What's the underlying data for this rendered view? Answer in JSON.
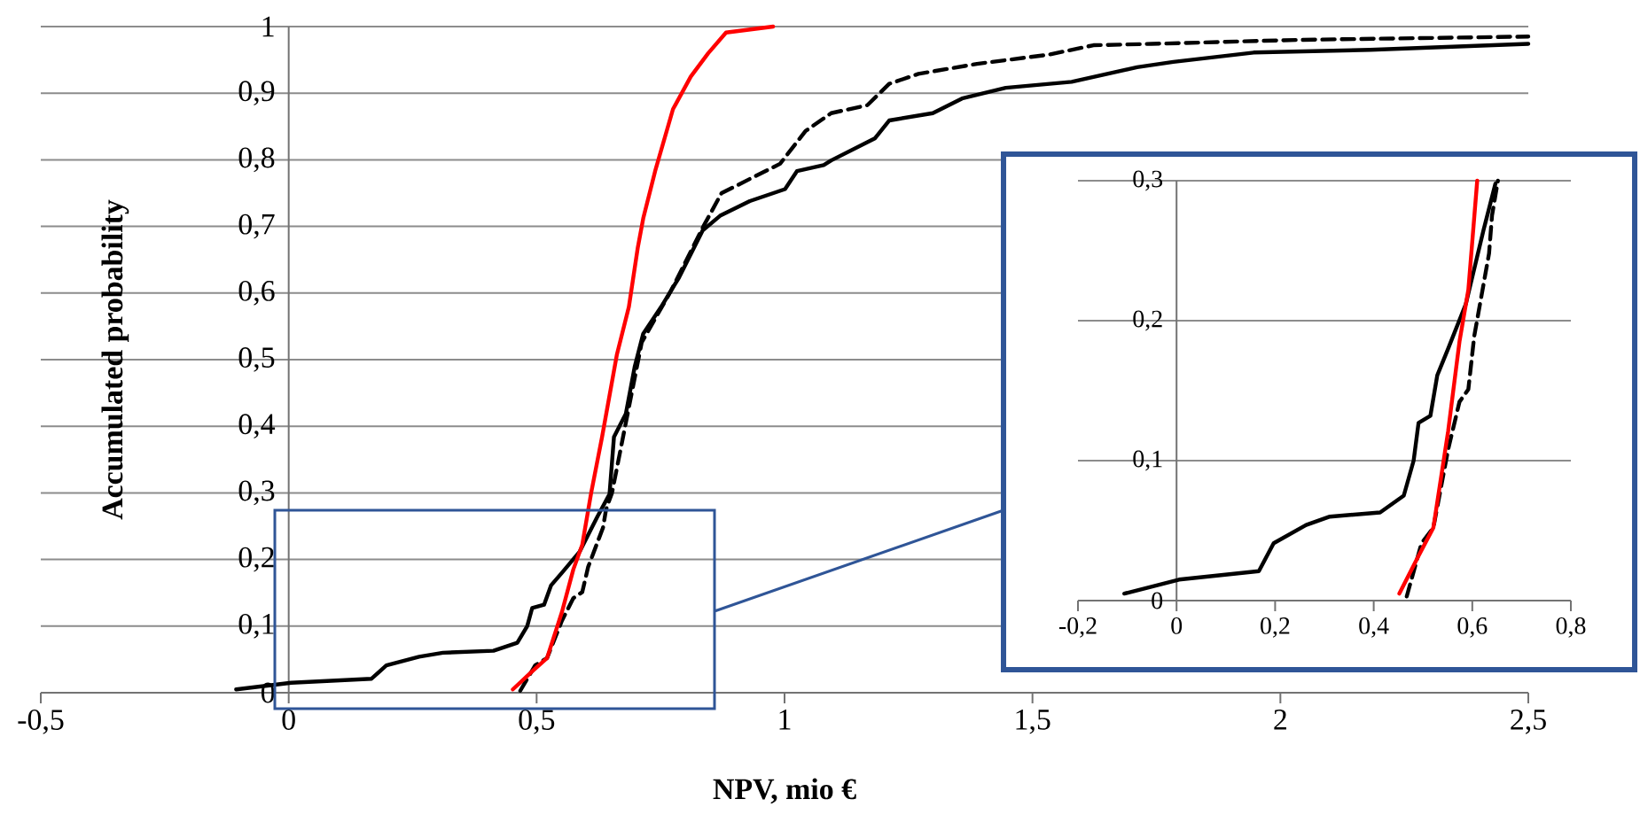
{
  "chart_data": [
    {
      "type": "line",
      "xlabel": "NPV, mio €",
      "ylabel": "Accumulated probability",
      "xlim": [
        -0.5,
        2.5
      ],
      "ylim": [
        0,
        1
      ],
      "xticks": [
        {
          "value": -0.5,
          "label": "-0,5"
        },
        0,
        {
          "value": 0.5,
          "label": "0,5"
        },
        1,
        {
          "value": 1.5,
          "label": "1,5"
        },
        2,
        {
          "value": 2.5,
          "label": "2,5"
        }
      ],
      "yticks": [
        0,
        {
          "value": 0.1,
          "label": "0,1"
        },
        {
          "value": 0.2,
          "label": "0,2"
        },
        {
          "value": 0.3,
          "label": "0,3"
        },
        {
          "value": 0.4,
          "label": "0,4"
        },
        {
          "value": 0.5,
          "label": "0,5"
        },
        {
          "value": 0.6,
          "label": "0,6"
        },
        {
          "value": 0.7,
          "label": "0,7"
        },
        {
          "value": 0.8,
          "label": "0,8"
        },
        {
          "value": 0.9,
          "label": "0,9"
        },
        1
      ],
      "grid": "y",
      "marker": "none",
      "series": [
        {
          "color": "#000000",
          "line_style": "solid",
          "x": [
            -0.106,
            0.005,
            0.167,
            0.197,
            0.263,
            0.311,
            0.413,
            0.461,
            0.481,
            0.491,
            0.515,
            0.529,
            0.551,
            0.587,
            0.623,
            0.647,
            0.656,
            0.68,
            0.698,
            0.715,
            0.751,
            0.787,
            0.835,
            0.87,
            0.93,
            1.001,
            1.025,
            1.079,
            1.094,
            1.182,
            1.211,
            1.299,
            1.358,
            1.446,
            1.579,
            1.711,
            1.784,
            1.946,
            2.181,
            2.5
          ],
          "values": [
            0.005,
            0.015,
            0.021,
            0.041,
            0.054,
            0.06,
            0.063,
            0.075,
            0.1,
            0.127,
            0.132,
            0.161,
            0.18,
            0.212,
            0.265,
            0.298,
            0.384,
            0.419,
            0.49,
            0.539,
            0.579,
            0.623,
            0.694,
            0.716,
            0.738,
            0.756,
            0.783,
            0.792,
            0.799,
            0.832,
            0.859,
            0.87,
            0.892,
            0.908,
            0.917,
            0.939,
            0.947,
            0.961,
            0.965,
            0.974
          ]
        },
        {
          "color": "#000000",
          "line_style": "dashed",
          "x": [
            0.467,
            0.497,
            0.521,
            0.551,
            0.574,
            0.592,
            0.604,
            0.634,
            0.64,
            0.652,
            0.712,
            0.77,
            0.837,
            0.873,
            0.932,
            0.991,
            1.042,
            1.094,
            1.167,
            1.211,
            1.27,
            1.388,
            1.534,
            1.623,
            1.74,
            2.034,
            2.5
          ],
          "values": [
            0.003,
            0.041,
            0.052,
            0.108,
            0.142,
            0.151,
            0.189,
            0.248,
            0.275,
            0.3,
            0.526,
            0.602,
            0.701,
            0.75,
            0.772,
            0.794,
            0.843,
            0.87,
            0.882,
            0.914,
            0.929,
            0.944,
            0.958,
            0.972,
            0.974,
            0.98,
            0.985
          ]
        },
        {
          "color": "#ff0000",
          "line_style": "solid",
          "x": [
            0.452,
            0.491,
            0.521,
            0.551,
            0.574,
            0.592,
            0.61,
            0.632,
            0.662,
            0.686,
            0.704,
            0.715,
            0.739,
            0.775,
            0.811,
            0.846,
            0.882,
            0.977
          ],
          "values": [
            0.005,
            0.032,
            0.052,
            0.121,
            0.185,
            0.222,
            0.3,
            0.384,
            0.508,
            0.579,
            0.668,
            0.712,
            0.783,
            0.876,
            0.925,
            0.96,
            0.991,
            1.0
          ]
        }
      ]
    },
    {
      "type": "line",
      "xlim": [
        -0.2,
        0.8
      ],
      "ylim": [
        0,
        0.3
      ],
      "xticks": [
        {
          "value": -0.2,
          "label": "-0,2"
        },
        0,
        {
          "value": 0.2,
          "label": "0,2"
        },
        {
          "value": 0.4,
          "label": "0,4"
        },
        {
          "value": 0.6,
          "label": "0,6"
        },
        {
          "value": 0.8,
          "label": "0,8"
        }
      ],
      "yticks": [
        0,
        {
          "value": 0.1,
          "label": "0,1"
        },
        {
          "value": 0.2,
          "label": "0,2"
        },
        {
          "value": 0.3,
          "label": "0,3"
        }
      ],
      "grid": "y",
      "marker": "none",
      "series": [
        {
          "color": "#000000",
          "line_style": "solid",
          "x": [
            -0.106,
            0.005,
            0.167,
            0.197,
            0.263,
            0.311,
            0.413,
            0.461,
            0.481,
            0.491,
            0.515,
            0.529,
            0.551,
            0.587,
            0.623,
            0.647
          ],
          "values": [
            0.005,
            0.015,
            0.021,
            0.041,
            0.054,
            0.06,
            0.063,
            0.075,
            0.1,
            0.127,
            0.132,
            0.161,
            0.18,
            0.212,
            0.265,
            0.298
          ]
        },
        {
          "color": "#000000",
          "line_style": "dashed",
          "x": [
            0.467,
            0.497,
            0.521,
            0.551,
            0.574,
            0.592,
            0.604,
            0.634,
            0.64,
            0.652
          ],
          "values": [
            0.003,
            0.041,
            0.052,
            0.108,
            0.142,
            0.151,
            0.189,
            0.248,
            0.275,
            0.3
          ]
        },
        {
          "color": "#ff0000",
          "line_style": "solid",
          "x": [
            0.452,
            0.491,
            0.521,
            0.551,
            0.574,
            0.592,
            0.61
          ],
          "values": [
            0.005,
            0.032,
            0.052,
            0.121,
            0.185,
            0.222,
            0.3
          ]
        }
      ]
    }
  ]
}
